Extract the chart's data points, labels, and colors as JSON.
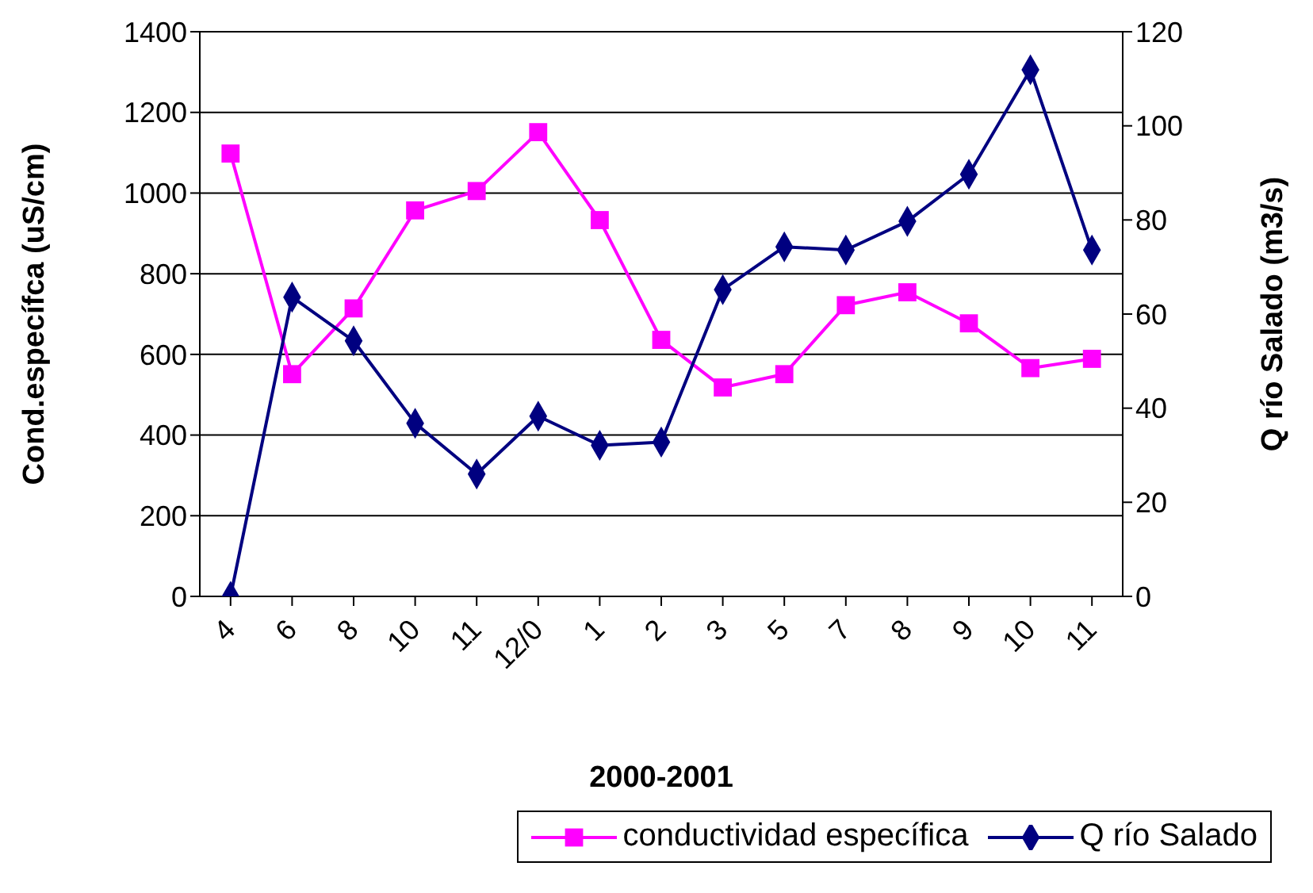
{
  "chart_data": {
    "type": "line",
    "xlabel": "2000-2001",
    "ylabel": "Cond.específca (uS/cm)",
    "y2label": "Q río Salado (m3/s)",
    "categories": [
      "4",
      "6",
      "8",
      "10",
      "11",
      "12/0",
      "1",
      "2",
      "3",
      "5",
      "7",
      "8",
      "9",
      "10",
      "11"
    ],
    "series": [
      {
        "name": "conductividad específica",
        "color": "#ff00ff",
        "marker": "square",
        "values": [
          1098,
          551,
          714,
          957,
          1005,
          1151,
          933,
          636,
          518,
          551,
          722,
          754,
          677,
          566,
          589
        ]
      },
      {
        "name": "Q río Salado",
        "color": "#000080",
        "marker": "diamond",
        "axis": "y2",
        "values": [
          0,
          63.6,
          54.3,
          36.8,
          26,
          38.3,
          32.1,
          32.8,
          65.2,
          74.3,
          73.6,
          79.7,
          89.7,
          111.9,
          73.6
        ]
      }
    ],
    "ylim": [
      0,
      1400
    ],
    "yticks": [
      0,
      200,
      400,
      600,
      800,
      1000,
      1200,
      1400
    ],
    "y2lim": [
      0,
      120
    ],
    "y2ticks": [
      0,
      20,
      40,
      60,
      80,
      100,
      120
    ],
    "grid": "y",
    "legend": "bottom right",
    "line_style": "solid"
  }
}
